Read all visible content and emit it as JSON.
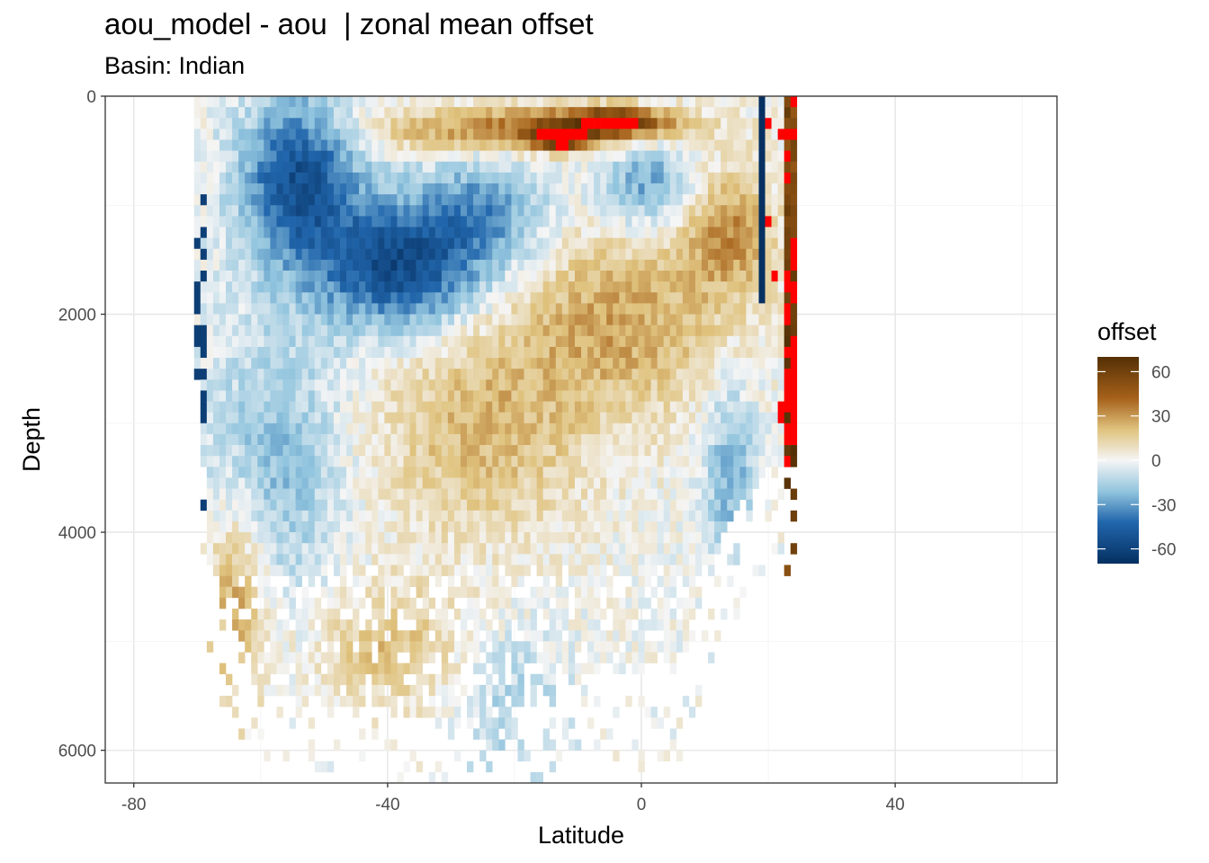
{
  "title": "aou_model - aou  | zonal mean offset",
  "subtitle": "Basin: Indian",
  "chart_data": {
    "type": "heatmap",
    "title": "aou_model - aou  | zonal mean offset",
    "subtitle": "Basin: Indian",
    "xlabel": "Latitude",
    "ylabel": "Depth",
    "xlim": [
      -84.5,
      65.5
    ],
    "ylim": [
      6300,
      0
    ],
    "y_reversed": true,
    "x_ticks": [
      -80,
      -40,
      0,
      40
    ],
    "y_ticks": [
      0,
      2000,
      4000,
      6000
    ],
    "grid": true,
    "legend": {
      "title": "offset",
      "position": "right",
      "ticks": [
        60,
        30,
        0,
        -30,
        -60
      ],
      "range": [
        -70,
        70
      ],
      "colors": {
        "low": "#053061",
        "mid": "#f5f5f5",
        "high": "#543005",
        "out_of_range": "#ff0000"
      }
    },
    "features": [
      {
        "lat": [
          -70,
          -35
        ],
        "depth": [
          120,
          1700
        ],
        "offset": -45
      },
      {
        "lat": [
          -52,
          -25
        ],
        "depth": [
          1000,
          2100
        ],
        "offset": -48
      },
      {
        "lat": [
          -40,
          5
        ],
        "depth": [
          100,
          520
        ],
        "offset": 35
      },
      {
        "lat": [
          -18,
          -10
        ],
        "depth": [
          260,
          420
        ],
        "offset": 90
      },
      {
        "lat": [
          -15,
          8
        ],
        "depth": [
          1500,
          3500
        ],
        "offset": 20
      },
      {
        "lat": [
          8,
          20
        ],
        "depth": [
          2000,
          4300
        ],
        "offset": -25
      },
      {
        "lat": [
          -68,
          -58
        ],
        "depth": [
          3600,
          5300
        ],
        "offset": 22
      },
      {
        "lat": [
          20,
          25
        ],
        "depth": [
          0,
          3300
        ],
        "offset": 60
      }
    ]
  }
}
